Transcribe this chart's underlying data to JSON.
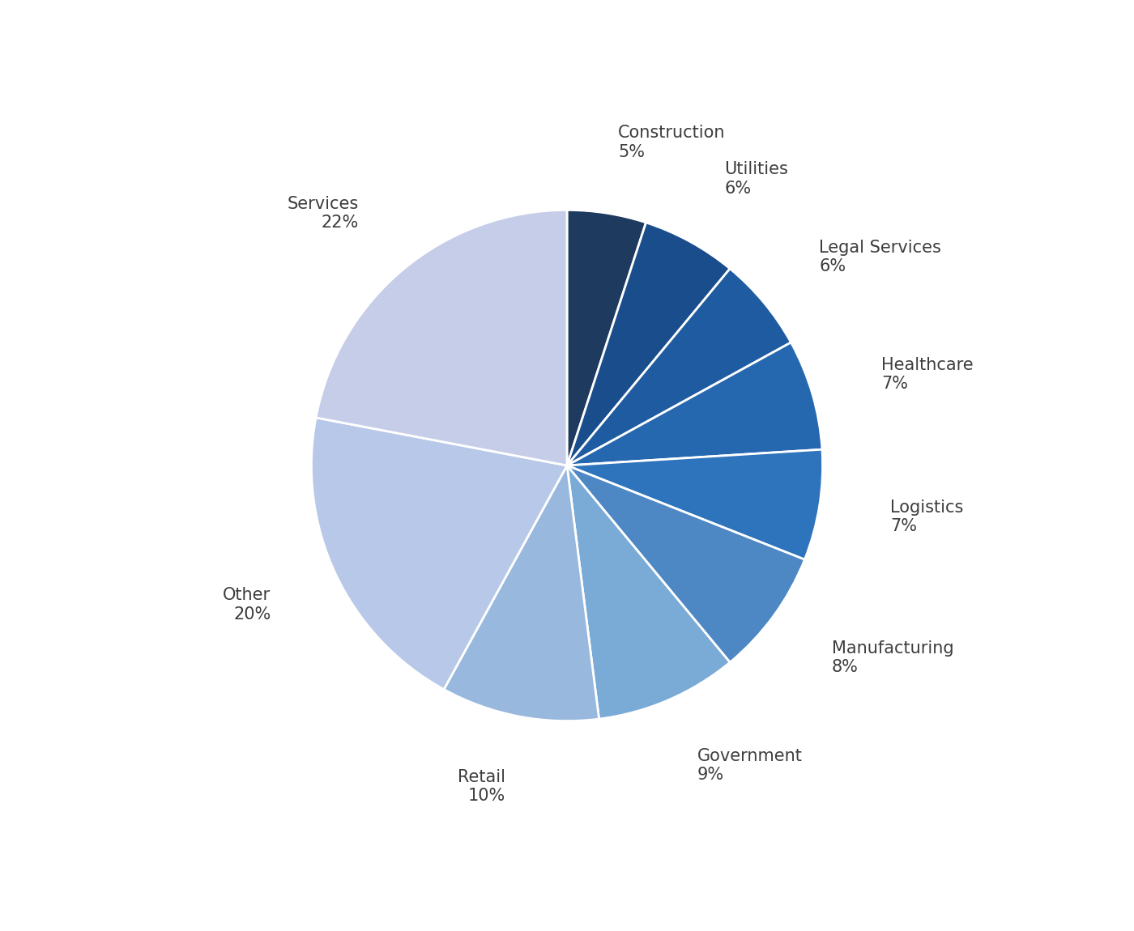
{
  "sectors": [
    "Construction",
    "Utilities",
    "Legal Services",
    "Healthcare",
    "Logistics",
    "Manufacturing",
    "Government",
    "Retail",
    "Other",
    "Services"
  ],
  "percentages": [
    5,
    6,
    6,
    7,
    7,
    8,
    9,
    10,
    20,
    22
  ],
  "wedge_colors": [
    "#1e3a5f",
    "#1a4d8c",
    "#1f5ba0",
    "#2668b0",
    "#2e74bc",
    "#4d87c4",
    "#7aaad6",
    "#98b8de",
    "#b8c8e8",
    "#c5cde8"
  ],
  "background_color": "#ffffff",
  "text_color": "#3d3d3d",
  "wedge_edge_color": "#ffffff",
  "label_fontsize": 15,
  "start_angle": 90
}
